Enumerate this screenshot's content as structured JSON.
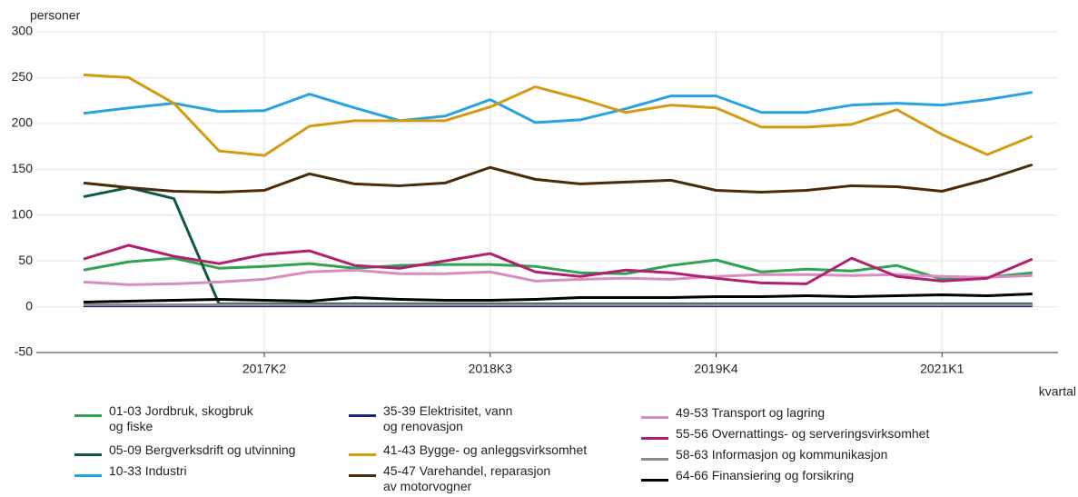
{
  "chart_data": {
    "type": "line",
    "y_label": "personer",
    "x_label": "kvartal",
    "categories": [
      null,
      null,
      null,
      null,
      "2017K2",
      null,
      null,
      null,
      null,
      "2018K3",
      null,
      null,
      null,
      null,
      "2019K4",
      null,
      null,
      null,
      null,
      "2021K1",
      null,
      null
    ],
    "ylim": [
      -50,
      300
    ],
    "yticks": [
      -50,
      0,
      50,
      100,
      150,
      200,
      250,
      300
    ],
    "grid": true,
    "series": [
      {
        "name": "01-03 Jordbruk, skogbruk\nog fiske",
        "color": "#2ea351",
        "values": [
          40,
          49,
          53,
          42,
          44,
          47,
          42,
          45,
          46,
          46,
          44,
          37,
          36,
          45,
          51,
          38,
          41,
          39,
          45,
          30,
          32,
          37
        ]
      },
      {
        "name": "05-09 Bergverksdrift og utvinning",
        "color": "#0c5a45",
        "values": [
          120,
          130,
          118,
          3,
          3,
          3,
          3,
          3,
          3,
          3,
          3,
          3,
          3,
          3,
          3,
          3,
          3,
          3,
          3,
          3,
          3,
          3
        ]
      },
      {
        "name": "10-33 Industri",
        "color": "#29a3e0",
        "values": [
          211,
          217,
          222,
          213,
          214,
          232,
          217,
          203,
          208,
          226,
          201,
          204,
          216,
          230,
          230,
          212,
          212,
          220,
          222,
          220,
          226,
          234
        ]
      },
      {
        "name": "35-39 Elektrisitet, vann\nog renovasjon",
        "color": "#1a237e",
        "values": [
          1,
          1,
          1,
          1,
          1,
          1,
          1,
          1,
          1,
          1,
          1,
          1,
          1,
          1,
          1,
          1,
          1,
          1,
          1,
          1,
          1,
          1
        ]
      },
      {
        "name": "41-43 Bygge- og anleggsvirksomhet",
        "color": "#d39a12",
        "values": [
          253,
          250,
          222,
          170,
          165,
          197,
          203,
          203,
          203,
          218,
          240,
          227,
          212,
          220,
          217,
          196,
          196,
          199,
          215,
          188,
          166,
          186
        ]
      },
      {
        "name": "45-47 Varehandel, reparasjon\nav motorvogner",
        "color": "#4a2a0a",
        "values": [
          135,
          130,
          126,
          125,
          127,
          145,
          134,
          132,
          135,
          152,
          139,
          134,
          136,
          138,
          127,
          125,
          127,
          132,
          131,
          126,
          139,
          155
        ]
      },
      {
        "name": "49-53 Transport og lagring",
        "color": "#d98cc0",
        "values": [
          27,
          24,
          25,
          27,
          30,
          38,
          40,
          36,
          36,
          38,
          28,
          30,
          31,
          30,
          33,
          35,
          35,
          34,
          35,
          33,
          32,
          34
        ]
      },
      {
        "name": "55-56 Overnattings- og serveringsvirksomhet",
        "color": "#b0206e",
        "values": [
          52,
          67,
          55,
          47,
          57,
          61,
          45,
          42,
          50,
          58,
          38,
          33,
          40,
          37,
          31,
          26,
          25,
          53,
          33,
          28,
          31,
          52
        ]
      },
      {
        "name": "58-63 Informasjon og kommunikasjon",
        "color": "#8c8c8c",
        "values": [
          2,
          2,
          2,
          2,
          2,
          2,
          2,
          2,
          2,
          2,
          2,
          2,
          2,
          2,
          2,
          2,
          2,
          2,
          2,
          2,
          2,
          2
        ]
      },
      {
        "name": "64-66 Finansiering og forsikring",
        "color": "#000000",
        "values": [
          5,
          6,
          7,
          8,
          7,
          6,
          10,
          8,
          7,
          7,
          8,
          10,
          10,
          10,
          11,
          11,
          12,
          11,
          12,
          13,
          12,
          14
        ]
      }
    ]
  }
}
